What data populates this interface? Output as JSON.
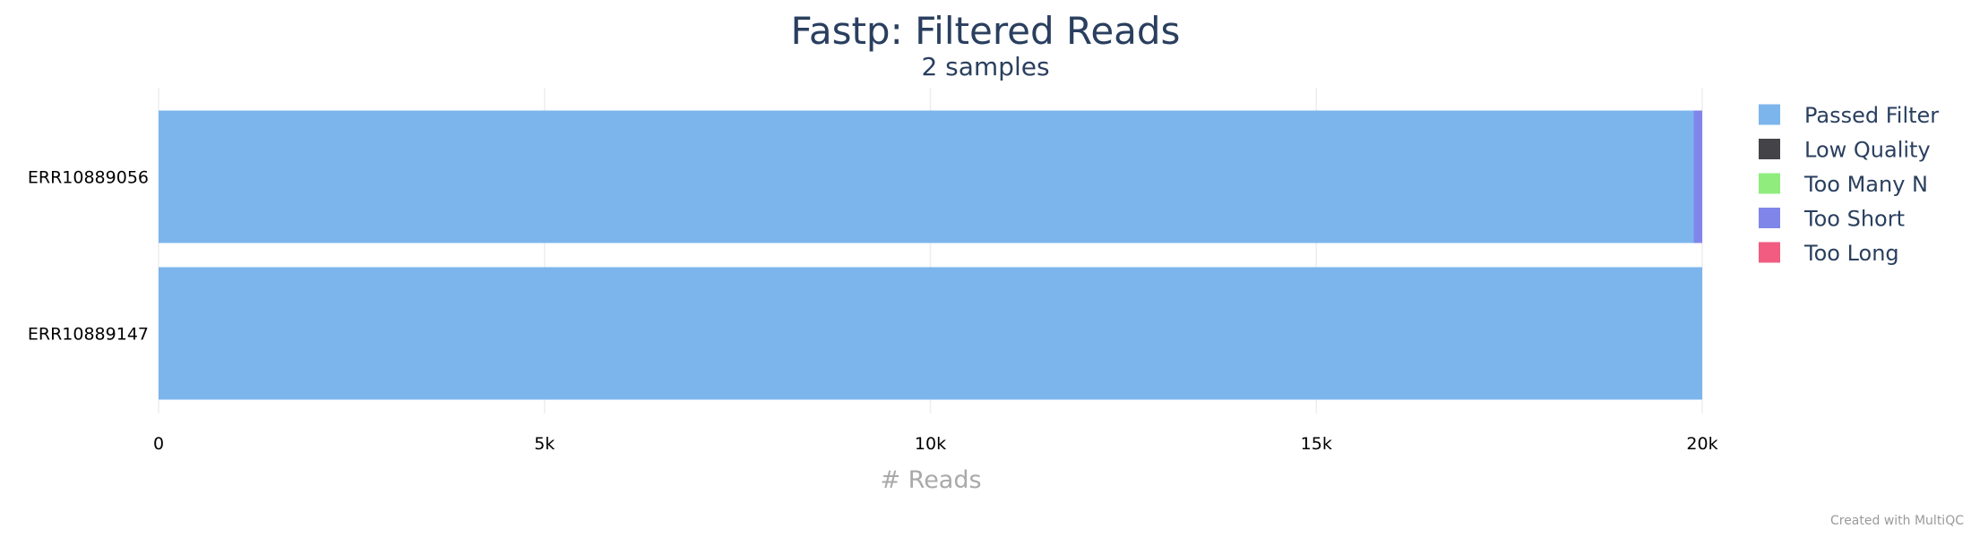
{
  "chart_data": {
    "type": "bar",
    "orientation": "horizontal",
    "stacked": true,
    "title": "Fastp: Filtered Reads",
    "subtitle": "2 samples",
    "xlabel": "# Reads",
    "ylabel": "",
    "xlim": [
      0,
      20000
    ],
    "x_ticks": [
      {
        "value": 0,
        "label": "0"
      },
      {
        "value": 5000,
        "label": "5k"
      },
      {
        "value": 10000,
        "label": "10k"
      },
      {
        "value": 15000,
        "label": "15k"
      },
      {
        "value": 20000,
        "label": "20k"
      }
    ],
    "grid": true,
    "legend_position": "top-right",
    "categories": [
      "ERR10889056",
      "ERR10889147"
    ],
    "series": [
      {
        "name": "Passed Filter",
        "color": "#7cb5ec",
        "values": [
          19890,
          20000
        ]
      },
      {
        "name": "Low Quality",
        "color": "#434348",
        "values": [
          0,
          0
        ]
      },
      {
        "name": "Too Many N",
        "color": "#90ed7d",
        "values": [
          0,
          0
        ]
      },
      {
        "name": "Too Short",
        "color": "#8085e9",
        "values": [
          110,
          0
        ]
      },
      {
        "name": "Too Long",
        "color": "#f15c80",
        "values": [
          0,
          0
        ]
      }
    ]
  },
  "credit": "Created with MultiQC"
}
